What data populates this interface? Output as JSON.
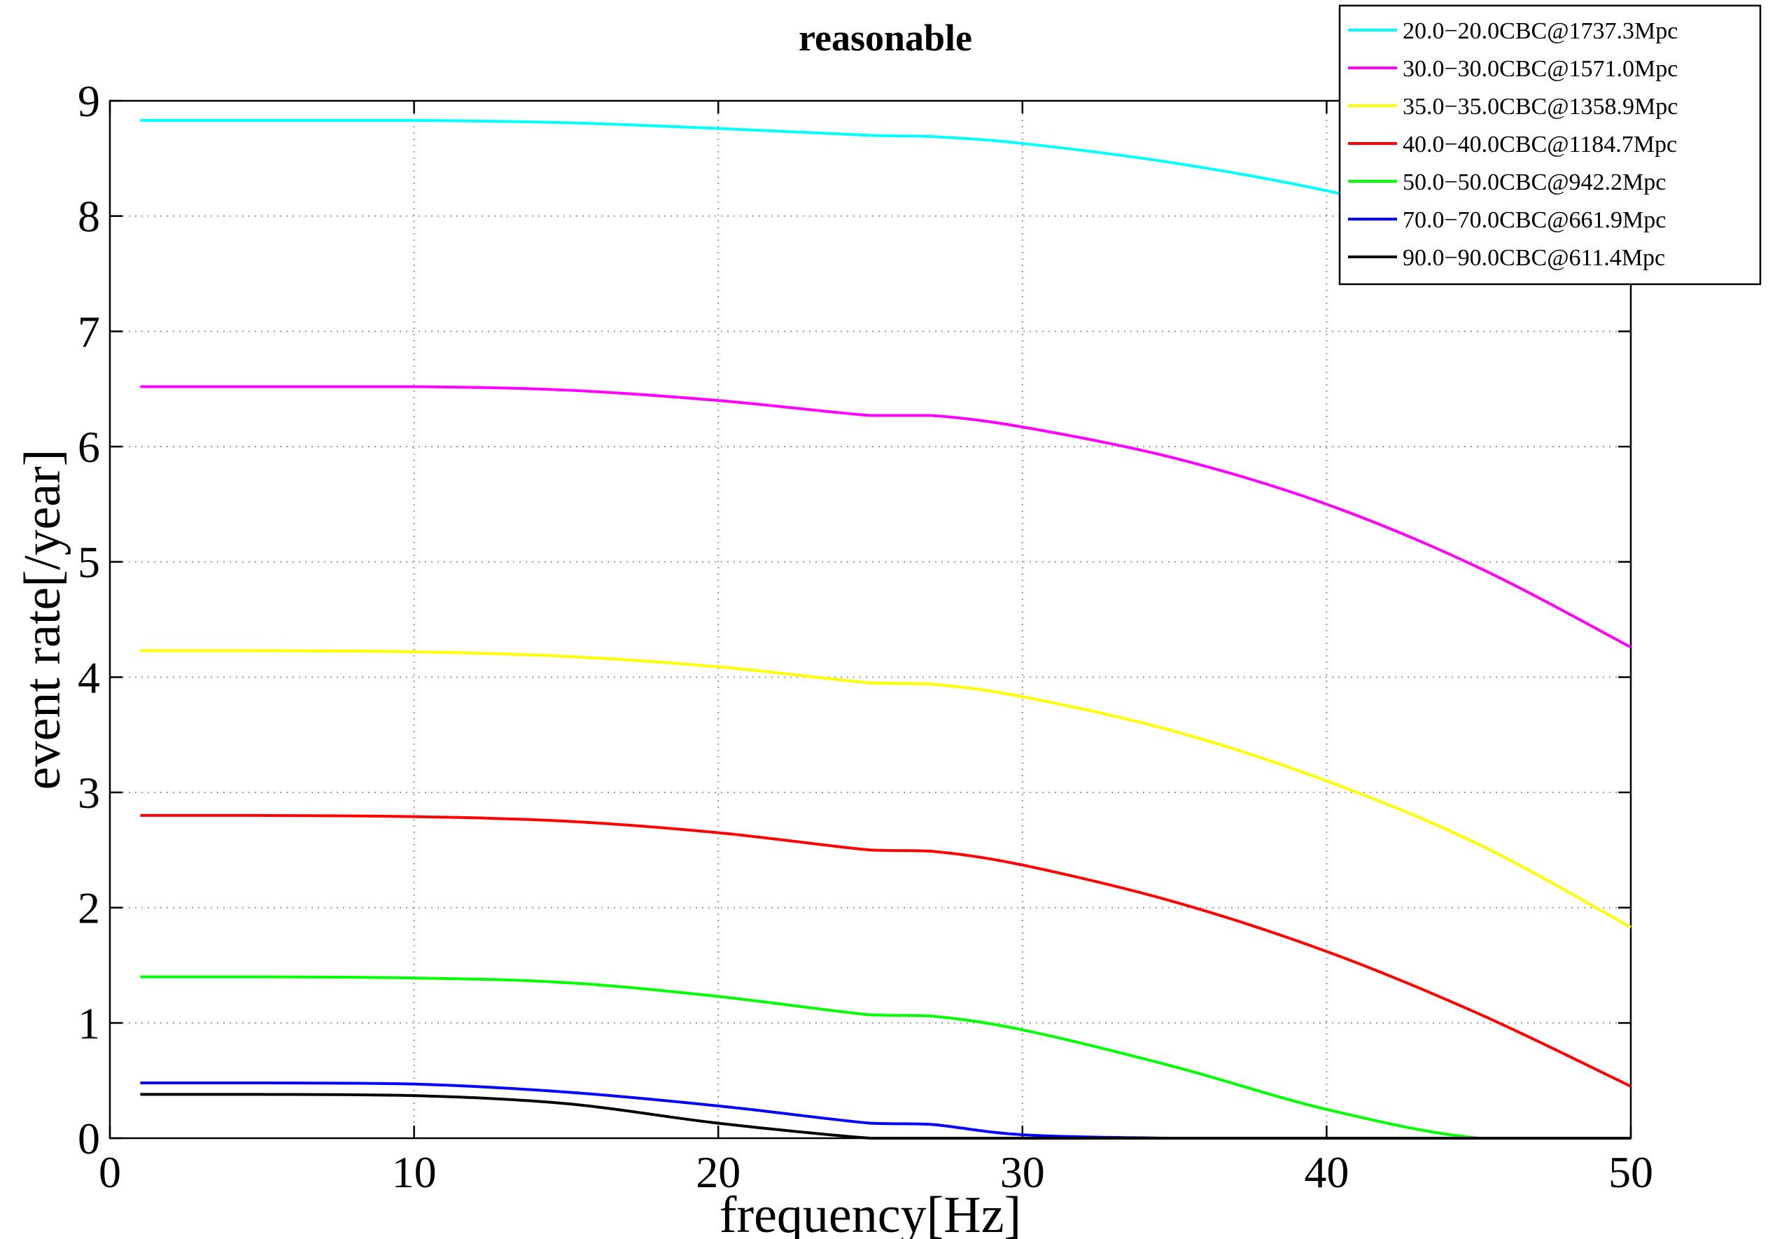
{
  "chart_data": {
    "type": "line",
    "title": "reasonable",
    "xlabel": "frequency[Hz]",
    "ylabel": "event rate[/year]",
    "xlim": [
      0,
      50
    ],
    "ylim": [
      0,
      9
    ],
    "xticks": [
      0,
      10,
      20,
      30,
      40,
      50
    ],
    "yticks": [
      0,
      1,
      2,
      3,
      4,
      5,
      6,
      7,
      8,
      9
    ],
    "xtick_labels": [
      "0",
      "10",
      "20",
      "30",
      "40",
      "50"
    ],
    "ytick_labels": [
      "0",
      "1",
      "2",
      "3",
      "4",
      "5",
      "6",
      "7",
      "8",
      "9"
    ],
    "grid": true,
    "grid_style": "dotted",
    "legend_position": "top-right",
    "x": [
      1,
      5,
      10,
      15,
      20,
      25,
      27,
      30,
      35,
      40,
      45,
      50
    ],
    "series": [
      {
        "name": "20.0−20.0CBC@1737.3Mpc",
        "color": "#00ffff",
        "values": [
          8.83,
          8.83,
          8.83,
          8.81,
          8.76,
          8.7,
          8.69,
          8.63,
          8.46,
          8.22,
          7.9,
          7.5
        ]
      },
      {
        "name": "30.0−30.0CBC@1571.0Mpc",
        "color": "#ff00ff",
        "values": [
          6.52,
          6.52,
          6.52,
          6.49,
          6.4,
          6.27,
          6.27,
          6.17,
          5.9,
          5.5,
          4.95,
          4.26
        ]
      },
      {
        "name": "35.0−35.0CBC@1358.9Mpc",
        "color": "#ffff00",
        "values": [
          4.23,
          4.23,
          4.22,
          4.18,
          4.09,
          3.95,
          3.94,
          3.83,
          3.53,
          3.1,
          2.55,
          1.83
        ]
      },
      {
        "name": "40.0−40.0CBC@1184.7Mpc",
        "color": "#ff0000",
        "values": [
          2.8,
          2.8,
          2.79,
          2.75,
          2.65,
          2.5,
          2.49,
          2.37,
          2.05,
          1.62,
          1.08,
          0.45
        ]
      },
      {
        "name": "50.0−50.0CBC@942.2Mpc",
        "color": "#00ff00",
        "values": [
          1.4,
          1.4,
          1.39,
          1.35,
          1.23,
          1.07,
          1.06,
          0.94,
          0.62,
          0.25,
          0.0,
          0.0
        ]
      },
      {
        "name": "70.0−70.0CBC@661.9Mpc",
        "color": "#0000ff",
        "values": [
          0.48,
          0.48,
          0.47,
          0.4,
          0.28,
          0.13,
          0.12,
          0.03,
          0.0,
          0.0,
          0.0,
          0.0
        ]
      },
      {
        "name": "90.0−90.0CBC@611.4Mpc",
        "color": "#000000",
        "values": [
          0.38,
          0.38,
          0.37,
          0.3,
          0.13,
          0.0,
          0.0,
          0.0,
          0.0,
          0.0,
          0.0,
          0.0
        ]
      }
    ]
  }
}
